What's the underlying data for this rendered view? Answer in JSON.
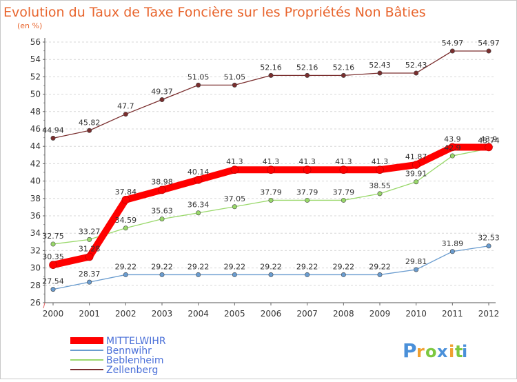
{
  "chart_data": {
    "type": "line",
    "title": "Evolution du Taux de Taxe Foncière sur les Propriétés Non Bâties",
    "subtitle": "(en %)",
    "xlabel": "",
    "ylabel": "",
    "x": [
      "2000",
      "2001",
      "2002",
      "2003",
      "2004",
      "2005",
      "2006",
      "2007",
      "2008",
      "2009",
      "2010",
      "2011",
      "2012"
    ],
    "ylim": [
      26,
      56
    ],
    "ytick_step": 2,
    "grid": "horizontal dashed",
    "legend_position": "bottom-left",
    "series": [
      {
        "name": "MITTELWIHR",
        "color": "#ff0000",
        "values": [
          30.35,
          31.28,
          37.84,
          38.98,
          40.14,
          41.3,
          41.3,
          41.3,
          41.3,
          41.3,
          41.87,
          43.9,
          43.9
        ],
        "labels": [
          "30.35",
          "31.28",
          "37.84",
          "38.98",
          "40.14",
          "41.3",
          "41.3",
          "41.3",
          "41.3",
          "41.3",
          "41.87",
          "43.9",
          "43.9"
        ]
      },
      {
        "name": "Bennwihr",
        "color": "#6a9ccf",
        "values": [
          27.54,
          28.37,
          29.22,
          29.22,
          29.22,
          29.22,
          29.22,
          29.22,
          29.22,
          29.22,
          29.81,
          31.89,
          32.53
        ],
        "labels": [
          "27.54",
          "28.37",
          "29.22",
          "29.22",
          "29.22",
          "29.22",
          "29.22",
          "29.22",
          "29.22",
          "29.22",
          "29.81",
          "31.89",
          "32.53"
        ]
      },
      {
        "name": "Beblenheim",
        "color": "#99d86a",
        "values": [
          32.75,
          33.27,
          34.59,
          35.63,
          36.34,
          37.05,
          37.79,
          37.79,
          37.79,
          38.55,
          39.91,
          42.9,
          43.74
        ],
        "labels": [
          "32.75",
          "33.27",
          "34.59",
          "35.63",
          "36.34",
          "37.05",
          "37.79",
          "37.79",
          "37.79",
          "38.55",
          "39.91",
          "42.9",
          "43.74"
        ]
      },
      {
        "name": "Zellenberg",
        "color": "#7a2e2e",
        "values": [
          44.94,
          45.82,
          47.7,
          49.37,
          51.05,
          51.05,
          52.16,
          52.16,
          52.16,
          52.43,
          52.43,
          54.97,
          54.97
        ],
        "labels": [
          "44.94",
          "45.82",
          "47.7",
          "49.37",
          "51.05",
          "51.05",
          "52.16",
          "52.16",
          "52.16",
          "52.43",
          "52.43",
          "54.97",
          "54.97"
        ]
      }
    ]
  },
  "branding": {
    "logo_text": "Proxiti",
    "logo_letters": [
      "P",
      "r",
      "o",
      "x",
      "i",
      "t",
      "i"
    ],
    "logo_colors": [
      "#4a90d9",
      "#f0a030",
      "#7cc840",
      "#4a90d9",
      "#f0a030",
      "#7cc840",
      "#4a90d9"
    ]
  }
}
